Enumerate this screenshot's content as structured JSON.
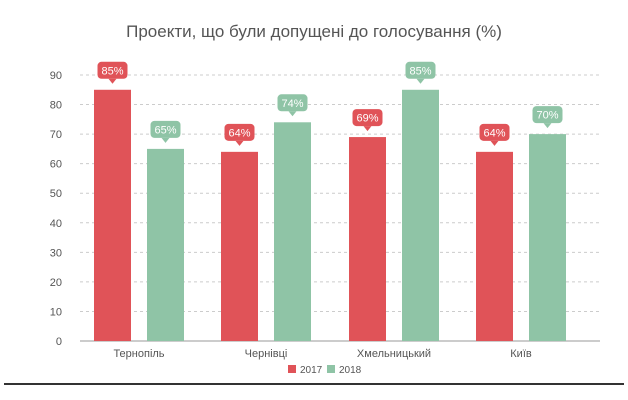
{
  "chart_data": {
    "type": "bar",
    "title": "Проекти, що були допущені до голосування (%)",
    "categories": [
      "Тернопіль",
      "Чернівці",
      "Хмельницький",
      "Київ"
    ],
    "series": [
      {
        "name": "2017",
        "color": "#e05358",
        "values": [
          85,
          64,
          69,
          64
        ],
        "labels": [
          "85%",
          "64%",
          "69%",
          "64%"
        ]
      },
      {
        "name": "2018",
        "color": "#8fc4a6",
        "values": [
          65,
          74,
          85,
          70
        ],
        "labels": [
          "65%",
          "74%",
          "85%",
          "70%"
        ]
      }
    ],
    "yticks": [
      0,
      10,
      20,
      30,
      40,
      50,
      60,
      70,
      80,
      90
    ],
    "ylim": [
      0,
      90
    ],
    "grid": true,
    "legend_position": "bottom-center",
    "colors": {
      "axis": "#999999",
      "grid": "#cccccc",
      "tick_text": "#555555"
    }
  }
}
